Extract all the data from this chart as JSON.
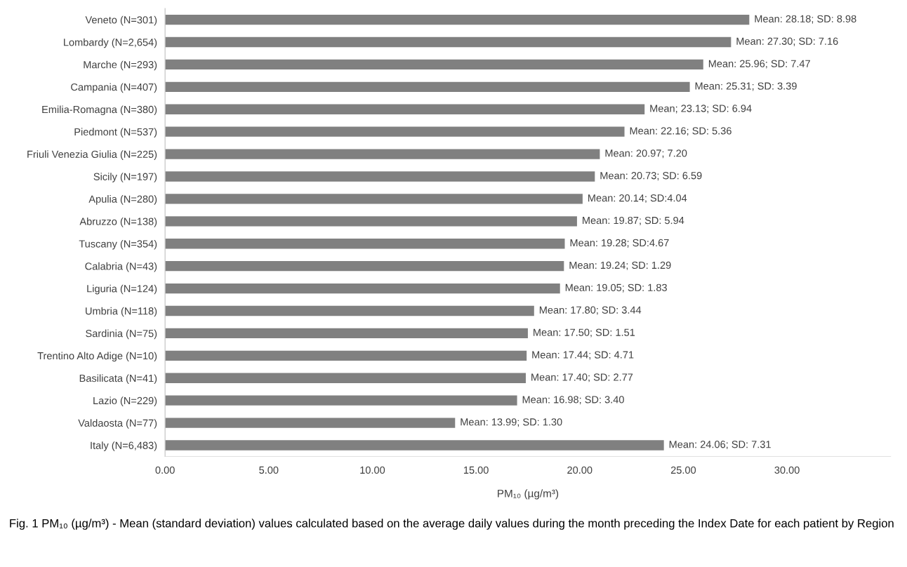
{
  "chart_data": {
    "type": "bar",
    "orientation": "horizontal",
    "xlabel": "PM₁₀ (µg/m³)",
    "categories": [
      "Veneto (N=301)",
      "Lombardy (N=2,654)",
      "Marche (N=293)",
      "Campania (N=407)",
      "Emilia-Romagna (N=380)",
      "Piedmont (N=537)",
      "Friuli Venezia Giulia (N=225)",
      "Sicily (N=197)",
      "Apulia (N=280)",
      "Abruzzo (N=138)",
      "Tuscany (N=354)",
      "Calabria (N=43)",
      "Liguria (N=124)",
      "Umbria (N=118)",
      "Sardinia (N=75)",
      "Trentino Alto Adige (N=10)",
      "Basilicata (N=41)",
      "Lazio (N=229)",
      "Valdaosta (N=77)",
      "Italy (N=6,483)"
    ],
    "values": [
      28.18,
      27.3,
      25.96,
      25.31,
      23.13,
      22.16,
      20.97,
      20.73,
      20.14,
      19.87,
      19.28,
      19.24,
      19.05,
      17.8,
      17.5,
      17.44,
      17.4,
      16.98,
      13.99,
      24.06
    ],
    "value_labels": [
      "Mean: 28.18; SD: 8.98",
      "Mean: 27.30; SD: 7.16",
      "Mean: 25.96; SD: 7.47",
      "Mean: 25.31; SD: 3.39",
      "Mean; 23.13; SD: 6.94",
      "Mean: 22.16; SD: 5.36",
      "Mean: 20.97; 7.20",
      "Mean: 20.73; SD: 6.59",
      "Mean: 20.14; SD:4.04",
      "Mean: 19.87; SD: 5.94",
      "Mean: 19.28; SD:4.67",
      "Mean: 19.24; SD: 1.29",
      "Mean: 19.05; SD: 1.83",
      "Mean: 17.80; SD: 3.44",
      "Mean: 17.50; SD: 1.51",
      "Mean: 17.44; SD: 4.71",
      "Mean: 17.40; SD: 2.77",
      "Mean: 16.98; SD: 3.40",
      "Mean: 13.99; SD: 1.30",
      "Mean: 24.06; SD: 7.31"
    ],
    "color": "#808080",
    "xlim": [
      0,
      35
    ],
    "xticks": [
      {
        "value": 0,
        "label": "0.00"
      },
      {
        "value": 5,
        "label": "5.00"
      },
      {
        "value": 10,
        "label": "10.00"
      },
      {
        "value": 15,
        "label": "15.00"
      },
      {
        "value": 20,
        "label": "20.00"
      },
      {
        "value": 25,
        "label": "25.00"
      },
      {
        "value": 30,
        "label": "30.00"
      }
    ],
    "grid": false,
    "legend": false,
    "annotations": [
      "Fig. 1 PM₁₀ (µg/m³) - Mean (standard deviation) values calculated based on the average daily values during the month preceding the Index Date for each patient by Region"
    ]
  }
}
